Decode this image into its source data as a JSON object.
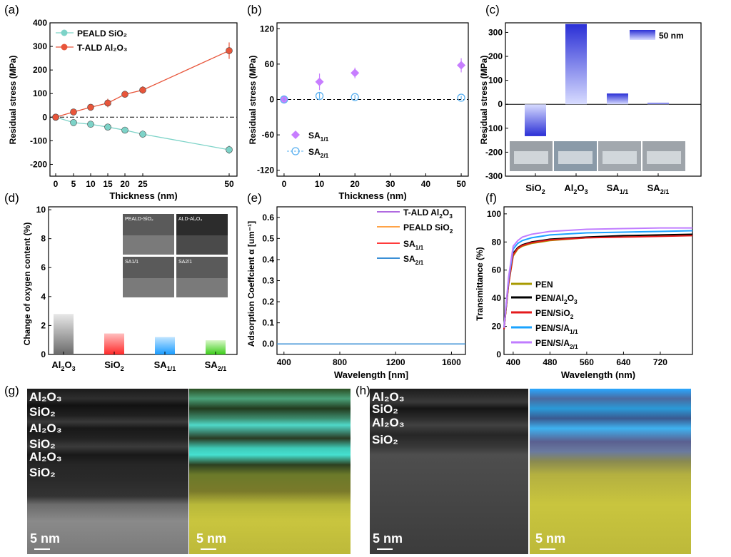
{
  "panel_letters": [
    "(a)",
    "(b)",
    "(c)",
    "(d)",
    "(e)",
    "(f)",
    "(g)",
    "(h)"
  ],
  "colors": {
    "peald": "#7dd3c8",
    "tald": "#e8553a",
    "sa11": "#c77dff",
    "sa21": "#5ab0f0",
    "e_tald": "#b06ae0",
    "e_peald": "#ffa347",
    "e_sa11": "#ff3b3b",
    "e_sa21": "#3a8fd6",
    "pen": "#a89a00",
    "pen_al": "#000000",
    "pen_si": "#e41a1c",
    "pen_s11": "#1aa3ff",
    "pen_s21": "#c07cff",
    "tem_green": "#7fb04a",
    "tem_teal": "#3fd6c0",
    "tem_yellow": "#d4c84a",
    "tem_blue": "#3aa8ff"
  },
  "chart_data": [
    {
      "id": "a",
      "type": "line",
      "xlabel": "Thickness (nm)",
      "ylabel": "Residual stress (MPa)",
      "xticks": [
        "0",
        "5",
        "10",
        "15",
        "20",
        "25",
        "50"
      ],
      "yticks": [
        "-200",
        "-100",
        "0",
        "100",
        "200",
        "300",
        "400"
      ],
      "ylim": [
        -250,
        400
      ],
      "x": [
        0,
        5,
        10,
        15,
        20,
        25,
        50
      ],
      "series": [
        {
          "name": "PEALD SiO₂",
          "values": [
            0,
            -23,
            -30,
            -42,
            -55,
            -72,
            -138
          ],
          "err": [
            0,
            6,
            5,
            6,
            6,
            16,
            18
          ]
        },
        {
          "name": "T-ALD Al₂O₃",
          "values": [
            0,
            22,
            42,
            60,
            97,
            115,
            282
          ],
          "err": [
            0,
            6,
            6,
            18,
            8,
            16,
            35
          ]
        }
      ]
    },
    {
      "id": "b",
      "type": "scatter",
      "xlabel": "Thickness (nm)",
      "ylabel": "Residual stress (MPa)",
      "xticks": [
        "0",
        "10",
        "20",
        "30",
        "40",
        "50"
      ],
      "yticks": [
        "-120",
        "-60",
        "0",
        "60",
        "120"
      ],
      "xlim": [
        -2,
        52
      ],
      "ylim": [
        -130,
        130
      ],
      "x": [
        0,
        10,
        20,
        50
      ],
      "series": [
        {
          "name": "SA1/1",
          "label_main": "SA",
          "label_sub": "1/1",
          "values": [
            0,
            30,
            45,
            58
          ],
          "err": [
            3,
            14,
            9,
            12
          ]
        },
        {
          "name": "SA2/1",
          "label_main": "SA",
          "label_sub": "2/1",
          "values": [
            0,
            6,
            4,
            3
          ],
          "err": [
            2,
            5,
            4,
            3
          ]
        }
      ]
    },
    {
      "id": "c",
      "type": "bar",
      "ylabel": "Residual stress (MPa)",
      "categories": [
        "SiO₂",
        "Al₂O₃",
        "SA1/1",
        "SA2/1"
      ],
      "cat_main": [
        "SiO",
        "Al",
        "SA",
        "SA"
      ],
      "values": [
        -133,
        335,
        45,
        6
      ],
      "yticks": [
        "-300",
        "-200",
        "-100",
        "0",
        "100",
        "200",
        "300"
      ],
      "ylim": [
        -300,
        340
      ],
      "legend": "50 nm"
    },
    {
      "id": "d",
      "type": "bar",
      "ylabel": "Change of oxygen content (%)",
      "categories": [
        "Al₂O₃",
        "SiO₂",
        "SA1/1",
        "SA2/1"
      ],
      "values": [
        2.8,
        1.45,
        1.2,
        0.98
      ],
      "yticks": [
        "0",
        "2",
        "4",
        "6",
        "8",
        "10"
      ],
      "ylim": [
        0,
        10.2
      ],
      "inset_labels": [
        "PEALD-SiO₂",
        "ALD-Al₂O₃",
        "SA1/1",
        "SA2/1"
      ]
    },
    {
      "id": "e",
      "type": "line",
      "xlabel": "Wavelength [nm]",
      "ylabel": "Adsorption Coeffcient α [um⁻¹]",
      "xticks": [
        "400",
        "800",
        "1200",
        "1600"
      ],
      "yticks": [
        "0.0",
        "0.1",
        "0.2",
        "0.3",
        "0.4",
        "0.5",
        "0.6"
      ],
      "xlim": [
        350,
        1700
      ],
      "ylim": [
        -0.05,
        0.65
      ],
      "series": [
        {
          "name": "T-ALD Al₂O₃",
          "values": [
            0,
            0
          ]
        },
        {
          "name": "PEALD SiO₂",
          "values": [
            0,
            0
          ]
        },
        {
          "name": "SA1/1",
          "values": [
            0,
            0
          ]
        },
        {
          "name": "SA2/1",
          "values": [
            0,
            0
          ]
        }
      ]
    },
    {
      "id": "f",
      "type": "line",
      "xlabel": "Wavelength (nm)",
      "ylabel": "Transmittance (%)",
      "xticks": [
        "400",
        "480",
        "560",
        "640",
        "720"
      ],
      "yticks": [
        "0",
        "20",
        "40",
        "60",
        "80",
        "100"
      ],
      "xlim": [
        380,
        790
      ],
      "ylim": [
        0,
        105
      ],
      "x": [
        380,
        390,
        400,
        410,
        420,
        440,
        480,
        560,
        640,
        720,
        790
      ],
      "series": [
        {
          "name": "PEN",
          "values": [
            18,
            50,
            70,
            75,
            77,
            79,
            81,
            83,
            84,
            84.5,
            85
          ]
        },
        {
          "name": "PEN/Al₂O₃",
          "values": [
            18,
            51,
            72,
            76,
            78,
            80,
            82,
            83.5,
            84.5,
            85,
            85.5
          ]
        },
        {
          "name": "PEN/SiO₂",
          "values": [
            18,
            50,
            71,
            75.5,
            77.5,
            79.5,
            81.5,
            83,
            83.5,
            84,
            84.5
          ]
        },
        {
          "name": "PEN/S/A1/1",
          "values": [
            19,
            53,
            75,
            79,
            81,
            83,
            85,
            86.5,
            87,
            87.5,
            88
          ]
        },
        {
          "name": "PEN/S/A2/1",
          "values": [
            19,
            55,
            77,
            81,
            83.5,
            85.5,
            87.5,
            89,
            89.5,
            90,
            90
          ]
        }
      ]
    }
  ],
  "tem_g": {
    "labels": [
      "Al₂O₃",
      "SiO₂",
      "Al₂O₃",
      "SiO₂",
      "Al₂O₃",
      "SiO₂"
    ],
    "scale_left": "5 nm",
    "scale_right": "5 nm"
  },
  "tem_h": {
    "labels": [
      "Al₂O₃",
      "SiO₂",
      "Al₂O₃",
      "SiO₂"
    ],
    "scale_left": "5 nm",
    "scale_right": "5 nm"
  }
}
